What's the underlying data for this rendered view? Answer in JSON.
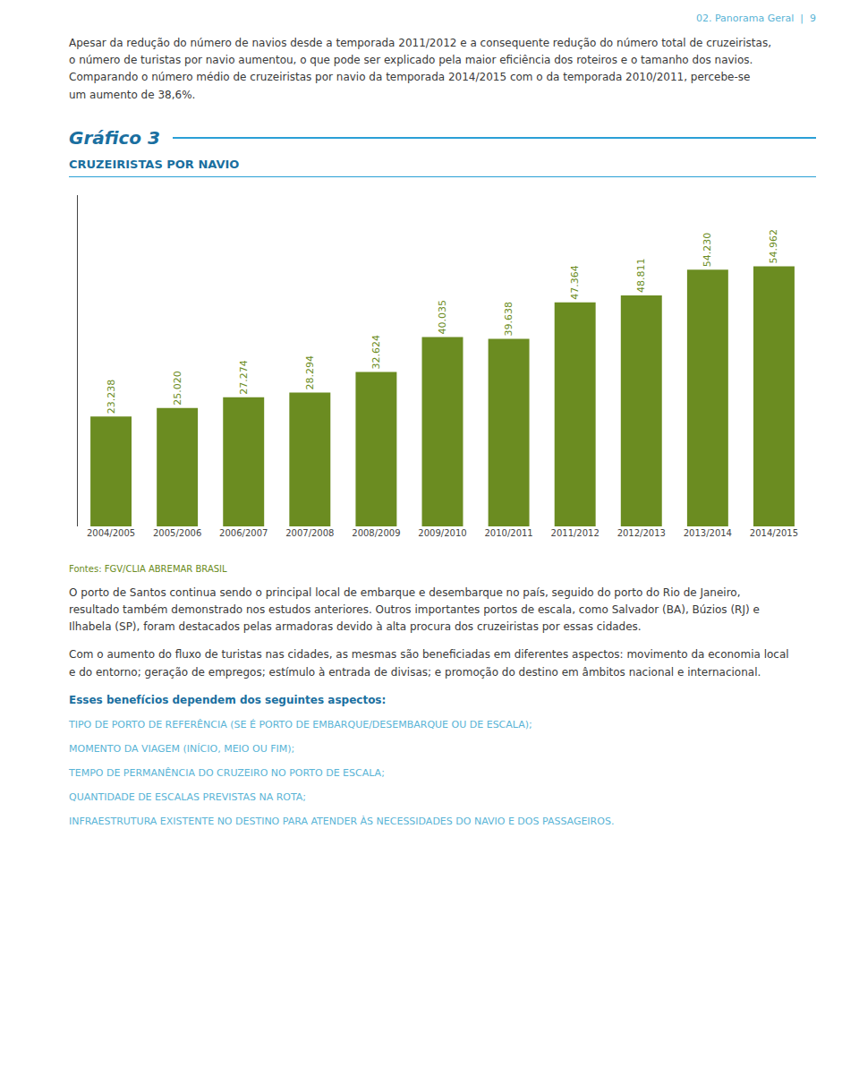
{
  "chart_data": {
    "type": "bar",
    "title": "Gráfico 3",
    "subtitle": "CRUZEIRISTAS POR NAVIO",
    "categories": [
      "2004/2005",
      "2005/2006",
      "2006/2007",
      "2007/2008",
      "2008/2009",
      "2009/2010",
      "2010/2011",
      "2011/2012",
      "2012/2013",
      "2013/2014",
      "2014/2015"
    ],
    "values": [
      23238,
      25020,
      27274,
      28294,
      32624,
      40035,
      39638,
      47364,
      48811,
      54230,
      54962
    ],
    "value_labels": [
      "23.238",
      "25.020",
      "27.274",
      "28.294",
      "32.624",
      "40.035",
      "39.638",
      "47.364",
      "48.811",
      "54.230",
      "54.962"
    ],
    "data_labels": true,
    "color": "#6b8c21",
    "ylim": [
      0,
      70000
    ],
    "tick_labels": "x",
    "grid": false,
    "annotations": [
      "02. Panorama Geral  |  9",
      "Apesar da redução do número de navios desde a temporada 2011/2012 e a consequente redução do número total de cruzeiristas,\no número de turistas por navio aumentou, o que pode ser explicado pela maior eficiência dos roteiros e o tamanho dos navios.\nComparando o número médio de cruzeiristas por navio da temporada 2014/2015 com o da temporada 2010/2011, percebe-se\num aumento de 38,6%.",
      "Fontes: FGV/CLIA ABREMAR BRASIL",
      "O porto de Santos continua sendo o principal local de embarque e desembarque no país, seguido do porto do Rio de Janeiro,\nresultado também demonstrado nos estudos anteriores. Outros importantes portos de escala, como Salvador (BA), Búzios (RJ) e\nIlhabela (SP), foram destacados pelas armadoras devido à alta procura dos cruzeiristas por essas cidades.",
      "Com o aumento do fluxo de turistas nas cidades, as mesmas são beneficiadas em diferentes aspectos: movimento da economia local\ne do entorno; geração de empregos; estímulo à entrada de divisas; e promoção do destino em âmbitos nacional e internacional.",
      "Esses benefícios dependem dos seguintes aspectos:",
      "TIPO DE PORTO DE REFERÊNCIA (SE É PORTO DE EMBARQUE/DESEMBARQUE OU DE ESCALA);",
      "MOMENTO DA VIAGEM (INÍCIO, MEIO OU FIM);",
      "TEMPO DE PERMANÊNCIA DO CRUZEIRO NO PORTO DE ESCALA;",
      "QUANTIDADE DE ESCALAS PREVISTAS NA ROTA;",
      "INFRAESTRUTURA EXISTENTE NO DESTINO PARA ATENDER ÀS NECESSIDADES DO NAVIO E DOS PASSAGEIROS."
    ]
  }
}
